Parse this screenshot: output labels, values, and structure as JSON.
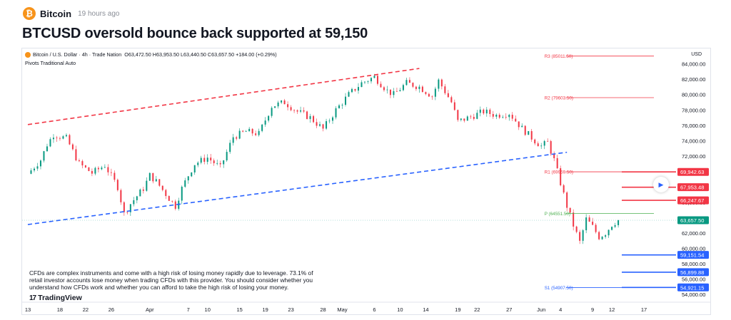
{
  "header": {
    "logo_glyph": "₿",
    "brand": "Bitcoin",
    "time_ago": "19 hours ago"
  },
  "article": {
    "title": "BTCUSD oversold bounce back supported at 59,150"
  },
  "chart_legend": {
    "symbol": "Bitcoin / U.S. Dollar · 4h · Trade Nation",
    "values": "O63,472.50 H63,953.50 L63,440.50 C63,657.50 +184.00 (+0.29%)",
    "indicator": "Pivots Traditional Auto",
    "currency": "USD"
  },
  "disclaimer": "CFDs are complex instruments and come with a high risk of losing money rapidly due to leverage. 73.1% of retail investor accounts lose money when trading CFDs with this provider. You should consider whether you understand how CFDs work and whether you can afford to take the high risk of losing your money.",
  "tv_logo": {
    "mark": "17",
    "text": "TradingView"
  },
  "colors": {
    "up": "#089981",
    "down": "#f23645",
    "channel_upper": "#f23645",
    "channel_lower": "#2962ff",
    "pivot_r": "#f23645",
    "pivot_p": "#4caf50",
    "pivot_s": "#2962ff",
    "brand": "#f7931a"
  },
  "play_button": {
    "icon": "play-icon",
    "glyph": "▶"
  },
  "chart_data": {
    "type": "candlestick",
    "symbol": "BTCUSD",
    "timeframe": "4h",
    "ylim": [
      53000,
      86000
    ],
    "y_ticks": [
      "84,000.00",
      "82,000.00",
      "80,000.00",
      "78,000.00",
      "76,000.00",
      "74,000.00",
      "72,000.00",
      "70,000.00",
      "68,000.00",
      "66,000.00",
      "64,000.00",
      "62,000.00",
      "60,000.00",
      "58,000.00",
      "56,000.00",
      "54,000.00"
    ],
    "y_tick_values": [
      84000,
      82000,
      80000,
      78000,
      76000,
      74000,
      72000,
      70000,
      68000,
      66000,
      64000,
      62000,
      60000,
      58000,
      56000,
      54000
    ],
    "x_ticks": [
      {
        "label": "13",
        "day": 0
      },
      {
        "label": "18",
        "day": 5
      },
      {
        "label": "22",
        "day": 9
      },
      {
        "label": "26",
        "day": 13
      },
      {
        "label": "Apr",
        "day": 19
      },
      {
        "label": "7",
        "day": 25
      },
      {
        "label": "10",
        "day": 28
      },
      {
        "label": "15",
        "day": 33
      },
      {
        "label": "19",
        "day": 37
      },
      {
        "label": "23",
        "day": 41
      },
      {
        "label": "28",
        "day": 46
      },
      {
        "label": "May",
        "day": 49
      },
      {
        "label": "6",
        "day": 54
      },
      {
        "label": "10",
        "day": 58
      },
      {
        "label": "14",
        "day": 62
      },
      {
        "label": "19",
        "day": 67
      },
      {
        "label": "22",
        "day": 70
      },
      {
        "label": "27",
        "day": 75
      },
      {
        "label": "Jun",
        "day": 80
      },
      {
        "label": "4",
        "day": 83
      },
      {
        "label": "9",
        "day": 88
      },
      {
        "label": "12",
        "day": 91
      },
      {
        "label": "17",
        "day": 96
      }
    ],
    "x_days_max": 101,
    "close_path": [
      {
        "day": 0,
        "price": 69700
      },
      {
        "day": 2,
        "price": 71500
      },
      {
        "day": 3,
        "price": 73500
      },
      {
        "day": 4,
        "price": 74800
      },
      {
        "day": 6,
        "price": 74300
      },
      {
        "day": 8,
        "price": 71000
      },
      {
        "day": 10,
        "price": 69800
      },
      {
        "day": 12,
        "price": 70800
      },
      {
        "day": 14,
        "price": 68000
      },
      {
        "day": 15,
        "price": 64500
      },
      {
        "day": 16,
        "price": 65800
      },
      {
        "day": 18,
        "price": 67800
      },
      {
        "day": 19,
        "price": 69500
      },
      {
        "day": 20,
        "price": 68700
      },
      {
        "day": 22,
        "price": 66500
      },
      {
        "day": 23,
        "price": 65500
      },
      {
        "day": 24,
        "price": 67800
      },
      {
        "day": 25,
        "price": 69500
      },
      {
        "day": 26,
        "price": 71000
      },
      {
        "day": 28,
        "price": 71800
      },
      {
        "day": 30,
        "price": 70500
      },
      {
        "day": 32,
        "price": 74500
      },
      {
        "day": 34,
        "price": 75200
      },
      {
        "day": 36,
        "price": 74900
      },
      {
        "day": 38,
        "price": 78500
      },
      {
        "day": 40,
        "price": 79000
      },
      {
        "day": 42,
        "price": 77800
      },
      {
        "day": 44,
        "price": 77000
      },
      {
        "day": 46,
        "price": 75500
      },
      {
        "day": 48,
        "price": 78000
      },
      {
        "day": 50,
        "price": 80000
      },
      {
        "day": 52,
        "price": 81500
      },
      {
        "day": 54,
        "price": 82300
      },
      {
        "day": 56,
        "price": 80500
      },
      {
        "day": 57,
        "price": 80000
      },
      {
        "day": 59,
        "price": 81500
      },
      {
        "day": 61,
        "price": 81000
      },
      {
        "day": 63,
        "price": 79800
      },
      {
        "day": 64,
        "price": 81800
      },
      {
        "day": 66,
        "price": 79000
      },
      {
        "day": 67,
        "price": 76500
      },
      {
        "day": 69,
        "price": 77100
      },
      {
        "day": 71,
        "price": 77800
      },
      {
        "day": 73,
        "price": 77300
      },
      {
        "day": 75,
        "price": 77600
      },
      {
        "day": 77,
        "price": 75600
      },
      {
        "day": 79,
        "price": 74000
      },
      {
        "day": 80,
        "price": 73300
      },
      {
        "day": 81,
        "price": 73800
      },
      {
        "day": 82,
        "price": 71500
      },
      {
        "day": 83,
        "price": 68500
      },
      {
        "day": 84,
        "price": 65500
      },
      {
        "day": 85,
        "price": 63000
      },
      {
        "day": 86,
        "price": 60800
      },
      {
        "day": 87,
        "price": 63800
      },
      {
        "day": 88,
        "price": 62800
      },
      {
        "day": 89,
        "price": 61500
      },
      {
        "day": 90,
        "price": 62000
      },
      {
        "day": 91,
        "price": 63100
      },
      {
        "day": 92,
        "price": 63658
      }
    ],
    "channel": {
      "upper": {
        "start": {
          "day": 0,
          "price": 76100
        },
        "end": {
          "day": 61,
          "price": 83400
        }
      },
      "lower": {
        "start": {
          "day": 0,
          "price": 63100
        },
        "end": {
          "day": 84,
          "price": 72500
        }
      }
    },
    "pivots": [
      {
        "label": "R3 (85011.50)",
        "value": 85011.5,
        "color": "#f23645"
      },
      {
        "label": "R2 (79603.50)",
        "value": 79603.5,
        "color": "#f23645"
      },
      {
        "label": "R1 (69959.50)",
        "value": 69959.5,
        "color": "#f23645"
      },
      {
        "label": "P (64551.50)",
        "value": 64551.5,
        "color": "#4caf50"
      },
      {
        "label": "S1 (54907.50)",
        "value": 54907.5,
        "color": "#2962ff"
      }
    ],
    "levels": [
      {
        "label": "69,942.63",
        "value": 69942.63,
        "color": "#f23645"
      },
      {
        "label": "67,953.48",
        "value": 67953.48,
        "color": "#f23645"
      },
      {
        "label": "66,247.67",
        "value": 66247.67,
        "color": "#f23645"
      },
      {
        "label": "59,151.54",
        "value": 59151.54,
        "color": "#2962ff"
      },
      {
        "label": "56,899.88",
        "value": 56899.88,
        "color": "#2962ff"
      },
      {
        "label": "54,921.15",
        "value": 54921.15,
        "color": "#2962ff"
      }
    ],
    "last_price": {
      "label": "63,657.50",
      "value": 63657.5,
      "color": "#089981"
    }
  }
}
